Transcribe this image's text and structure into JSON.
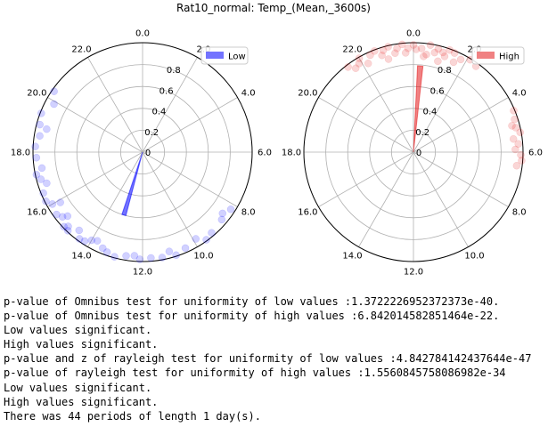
{
  "title": "Rat10_normal: Temp_(Mean,_3600s)",
  "chart_data": [
    {
      "type": "scatter",
      "projection": "polar",
      "hour_ticks": [
        "0.0",
        "2.0",
        "4.0",
        "6.0",
        "8.0",
        "10.0",
        "12.0",
        "14.0",
        "16.0",
        "18.0",
        "20.0",
        "22.0"
      ],
      "radial_ticks": [
        "0",
        "0.2",
        "0.4",
        "0.6",
        "0.8"
      ],
      "rlim": [
        0,
        1
      ],
      "direction": "clockwise",
      "zero_at": "top",
      "legend": {
        "label": "Low",
        "placement": "top-right"
      },
      "color": "#0000ff",
      "mean_vector": {
        "hour": 13.1,
        "length": 0.6
      },
      "points": [
        [
          10.8,
          0.99
        ],
        [
          12.1,
          0.98
        ],
        [
          13.5,
          0.95
        ],
        [
          14.2,
          0.97
        ],
        [
          14.6,
          0.92
        ],
        [
          15.0,
          0.96
        ],
        [
          15.3,
          0.9
        ],
        [
          15.6,
          0.97
        ],
        [
          16.0,
          0.95
        ],
        [
          16.5,
          0.98
        ],
        [
          17.0,
          0.96
        ],
        [
          17.4,
          0.93
        ],
        [
          17.8,
          0.97
        ],
        [
          18.2,
          0.98
        ],
        [
          18.6,
          0.95
        ],
        [
          19.0,
          0.97
        ],
        [
          19.4,
          0.99
        ],
        [
          19.9,
          0.92
        ],
        [
          20.3,
          0.98
        ],
        [
          8.2,
          0.96
        ],
        [
          8.7,
          0.95
        ],
        [
          9.3,
          0.97
        ],
        [
          9.9,
          0.93
        ],
        [
          10.4,
          0.96
        ],
        [
          11.3,
          0.98
        ],
        [
          11.7,
          0.97
        ],
        [
          12.6,
          0.96
        ],
        [
          13.0,
          0.99
        ],
        [
          13.8,
          0.91
        ],
        [
          14.9,
          0.99
        ],
        [
          15.9,
          0.88
        ],
        [
          16.8,
          0.92
        ],
        [
          17.2,
          0.99
        ],
        [
          18.9,
          0.9
        ],
        [
          14.4,
          0.98
        ],
        [
          15.1,
          0.99
        ],
        [
          16.2,
          0.99
        ],
        [
          14.0,
          0.93
        ],
        [
          13.3,
          0.97
        ],
        [
          12.3,
          0.95
        ],
        [
          11.0,
          0.94
        ],
        [
          9.6,
          0.99
        ],
        [
          8.5,
          0.92
        ],
        [
          15.4,
          0.94
        ]
      ]
    },
    {
      "type": "scatter",
      "projection": "polar",
      "hour_ticks": [
        "0.0",
        "2.0",
        "4.0",
        "6.0",
        "8.0",
        "10.0",
        "12.0",
        "14.0",
        "16.0",
        "18.0",
        "20.0",
        "22.0"
      ],
      "radial_ticks": [
        "0",
        "0.2",
        "0.4",
        "0.6",
        "0.8"
      ],
      "rlim": [
        0,
        1
      ],
      "direction": "clockwise",
      "zero_at": "top",
      "legend": {
        "label": "High",
        "placement": "top-right"
      },
      "color": "#e41a1c",
      "mean_vector": {
        "hour": 0.3,
        "length": 0.79
      },
      "points": [
        [
          22.4,
          0.97
        ],
        [
          22.8,
          0.93
        ],
        [
          23.1,
          0.99
        ],
        [
          23.4,
          0.96
        ],
        [
          23.7,
          0.91
        ],
        [
          0.0,
          0.98
        ],
        [
          0.3,
          0.95
        ],
        [
          0.6,
          0.99
        ],
        [
          0.9,
          0.97
        ],
        [
          1.2,
          0.92
        ],
        [
          1.5,
          0.98
        ],
        [
          1.8,
          0.95
        ],
        [
          2.1,
          0.99
        ],
        [
          4.8,
          0.97
        ],
        [
          5.0,
          0.93
        ],
        [
          5.3,
          0.99
        ],
        [
          5.7,
          0.96
        ],
        [
          6.1,
          0.98
        ],
        [
          6.5,
          0.95
        ],
        [
          21.5,
          0.98
        ],
        [
          21.9,
          0.95
        ],
        [
          22.2,
          0.91
        ],
        [
          23.0,
          0.88
        ],
        [
          0.5,
          0.9
        ],
        [
          1.0,
          0.86
        ],
        [
          22.6,
          0.99
        ],
        [
          23.6,
          0.99
        ],
        [
          0.8,
          0.93
        ],
        [
          1.6,
          0.9
        ],
        [
          4.5,
          0.99
        ],
        [
          5.5,
          0.92
        ],
        [
          6.3,
          0.99
        ],
        [
          22.0,
          0.99
        ],
        [
          23.3,
          0.92
        ],
        [
          0.1,
          0.94
        ],
        [
          1.3,
          0.99
        ],
        [
          2.4,
          0.97
        ],
        [
          22.9,
          0.97
        ],
        [
          0.4,
          0.88
        ],
        [
          5.1,
          0.96
        ],
        [
          21.7,
          0.93
        ],
        [
          23.8,
          0.95
        ],
        [
          1.1,
          0.95
        ],
        [
          5.9,
          0.93
        ]
      ]
    }
  ],
  "output_lines": [
    "p-value of Omnibus test for uniformity of low values :1.3722226952372373e-40.",
    "p-value of Omnibus test for uniformity of high values :6.842014582851464e-22.",
    "Low values significant.",
    "High values significant.",
    "p-value and z of rayleigh test for uniformity of low values :4.842784142437644e-47",
    "p-value of rayleigh test for uniformity of high values :1.5560845758086982e-34",
    "Low values significant.",
    "High values significant.",
    "There was 44 periods of length 1 day(s)."
  ]
}
